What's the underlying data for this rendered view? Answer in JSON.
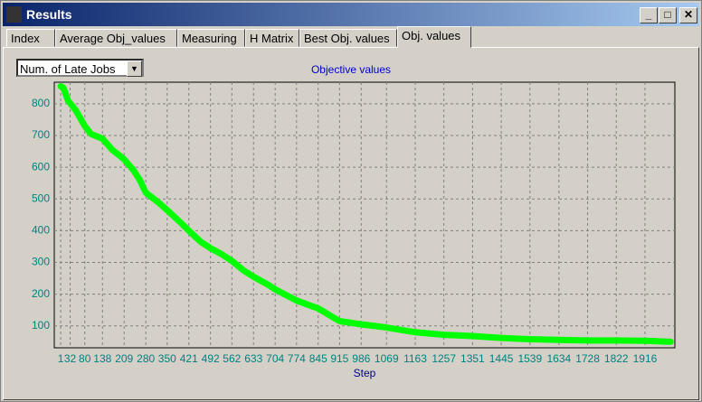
{
  "window": {
    "title": "Results"
  },
  "tabs": [
    "Index",
    "Average Obj_values",
    "Measuring",
    "H Matrix",
    "Best Obj. values",
    "Obj. values"
  ],
  "dropdown": {
    "selected": "Num. of Late Jobs"
  },
  "chart_data": {
    "type": "line",
    "title": "Objective values",
    "x_label": "Step",
    "x": [
      1,
      10,
      25,
      50,
      80,
      100,
      138,
      170,
      209,
      240,
      260,
      280,
      320,
      350,
      400,
      421,
      460,
      492,
      530,
      562,
      600,
      633,
      680,
      704,
      774,
      845,
      915,
      986,
      1069,
      1163,
      1257,
      1351,
      1445,
      1539,
      1634,
      1728,
      1822,
      1916,
      2000
    ],
    "values": [
      855,
      850,
      810,
      780,
      730,
      705,
      690,
      655,
      625,
      590,
      560,
      520,
      490,
      465,
      420,
      400,
      365,
      345,
      325,
      305,
      275,
      255,
      230,
      215,
      180,
      155,
      115,
      105,
      95,
      80,
      72,
      68,
      62,
      58,
      56,
      54,
      54,
      53,
      50
    ],
    "color": "#00ff00",
    "xlim": [
      -20,
      2014
    ],
    "xticks": [
      1,
      32,
      80,
      138,
      209,
      280,
      350,
      421,
      492,
      562,
      633,
      704,
      774,
      845,
      915,
      986,
      1069,
      1163,
      1257,
      1351,
      1445,
      1539,
      1634,
      1728,
      1822,
      1916
    ],
    "ylim": [
      31,
      868
    ],
    "yticks": [
      100,
      200,
      300,
      400,
      500,
      600,
      700,
      800
    ],
    "grid": true
  }
}
